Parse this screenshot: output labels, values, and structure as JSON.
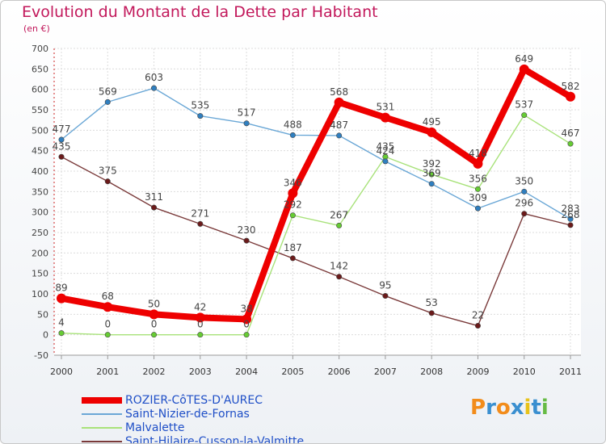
{
  "chart_data": {
    "type": "line",
    "title": "Evolution du Montant de la Dette par Habitant",
    "subtitle": "(en €)",
    "categories": [
      "2000",
      "2001",
      "2002",
      "2003",
      "2004",
      "2005",
      "2006",
      "2007",
      "2008",
      "2009",
      "2010",
      "2011"
    ],
    "y_ticks": [
      -50,
      0,
      50,
      100,
      150,
      200,
      250,
      300,
      350,
      400,
      450,
      500,
      550,
      600,
      650,
      700
    ],
    "ylim": [
      -50,
      700
    ],
    "series": [
      {
        "name": "ROZIER-CôTES-D'AUREC",
        "color": "#ee0000",
        "dot": "#ee0000",
        "values": [
          89,
          68,
          50,
          42,
          38,
          346,
          568,
          531,
          495,
          418,
          649,
          582
        ]
      },
      {
        "name": "Saint-Nizier-de-Fornas",
        "color": "#6aa7d6",
        "dot": "#2f7fc0",
        "values": [
          477,
          569,
          603,
          535,
          517,
          488,
          487,
          424,
          369,
          309,
          350,
          283
        ]
      },
      {
        "name": "Malvalette",
        "color": "#a8e27a",
        "dot": "#66cc33",
        "values": [
          4,
          0,
          0,
          0,
          0,
          292,
          267,
          435,
          392,
          356,
          537,
          467
        ]
      },
      {
        "name": "Saint-Hilaire-Cusson-la-Valmitte",
        "color": "#7a3a3a",
        "dot": "#6b1a1a",
        "values": [
          435,
          375,
          311,
          271,
          230,
          187,
          142,
          95,
          53,
          22,
          296,
          268
        ]
      }
    ],
    "logo": {
      "text": "Proxiti",
      "colors": [
        "#f28c1b",
        "#3a8fd0",
        "#f28c1b",
        "#3a8fd0",
        "#e8c21a",
        "#3a8fd0",
        "#66bb44"
      ]
    }
  }
}
